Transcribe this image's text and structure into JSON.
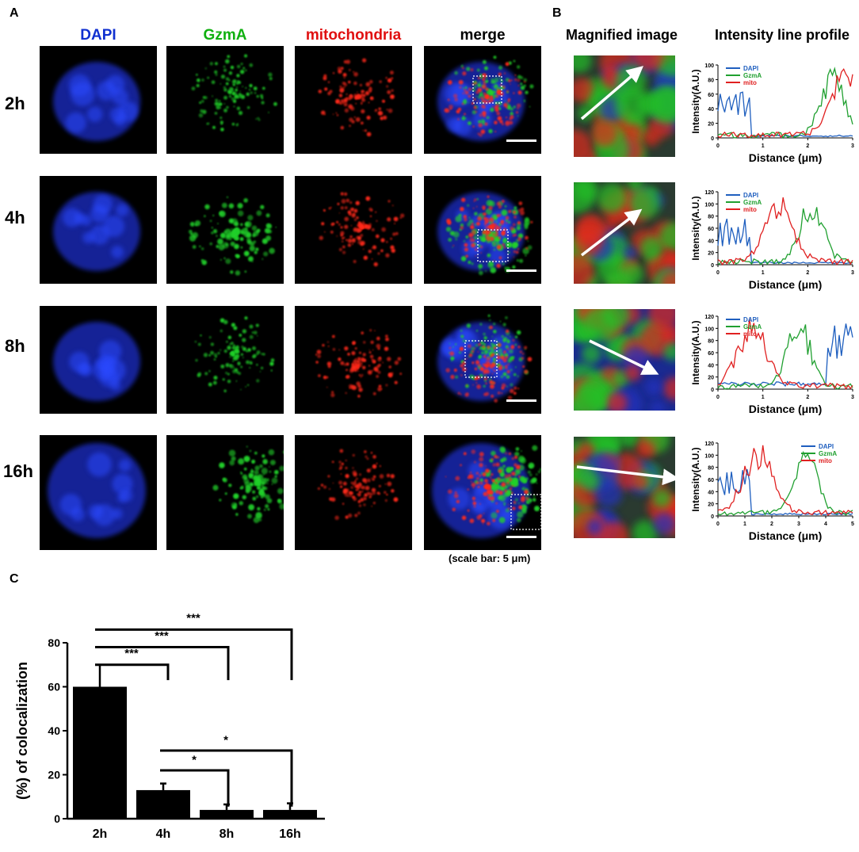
{
  "panels": {
    "a": "A",
    "b": "B",
    "c": "C"
  },
  "columns": [
    "DAPI",
    "GzmA",
    "mitochondria",
    "merge"
  ],
  "column_colors": [
    "#1030d0",
    "#10b010",
    "#e01010",
    "#000000"
  ],
  "rows": [
    "2h",
    "4h",
    "8h",
    "16h"
  ],
  "scale_bar_caption": "(scale bar: 5 μm)",
  "panel_b": {
    "title_magnified": "Magnified image",
    "title_profile": "Intensity line profile"
  },
  "profile_axes": {
    "ylabel": "Intensity(A.U.)",
    "xlabel": "Distance (μm)"
  },
  "legend": [
    "DAPI",
    "GzmA",
    "mito"
  ],
  "line_colors": {
    "DAPI": "#1f5fbf",
    "GzmA": "#20a030",
    "mito": "#e02020"
  },
  "profiles": [
    {
      "xmax": 3,
      "xticks": [
        0,
        1,
        2,
        3
      ],
      "ymax": 100,
      "yticks": [
        0,
        20,
        40,
        60,
        80,
        100
      ]
    },
    {
      "xmax": 3,
      "xticks": [
        0,
        1,
        2,
        3
      ],
      "ymax": 120,
      "yticks": [
        0,
        20,
        40,
        60,
        80,
        100,
        120
      ]
    },
    {
      "xmax": 3,
      "xticks": [
        0,
        1,
        2,
        3
      ],
      "ymax": 120,
      "yticks": [
        0,
        20,
        40,
        60,
        80,
        100,
        120
      ]
    },
    {
      "xmax": 5,
      "xticks": [
        0,
        1,
        2,
        3,
        4,
        5
      ],
      "ymax": 120,
      "yticks": [
        0,
        20,
        40,
        60,
        80,
        100,
        120
      ]
    }
  ],
  "chart_data": {
    "type": "bar",
    "categories": [
      "2h",
      "4h",
      "8h",
      "16h"
    ],
    "values": [
      60,
      13,
      4,
      4
    ],
    "errors": [
      10,
      3,
      2.5,
      3
    ],
    "ylabel": "(%) of colocalization",
    "ylim": [
      0,
      80
    ],
    "yticks": [
      0,
      20,
      40,
      60,
      80
    ],
    "significance": [
      {
        "from": "2h",
        "to": "4h",
        "label": "***"
      },
      {
        "from": "2h",
        "to": "8h",
        "label": "***"
      },
      {
        "from": "2h",
        "to": "16h",
        "label": "***"
      },
      {
        "from": "4h",
        "to": "8h",
        "label": "*"
      },
      {
        "from": "4h",
        "to": "16h",
        "label": "*"
      }
    ]
  }
}
